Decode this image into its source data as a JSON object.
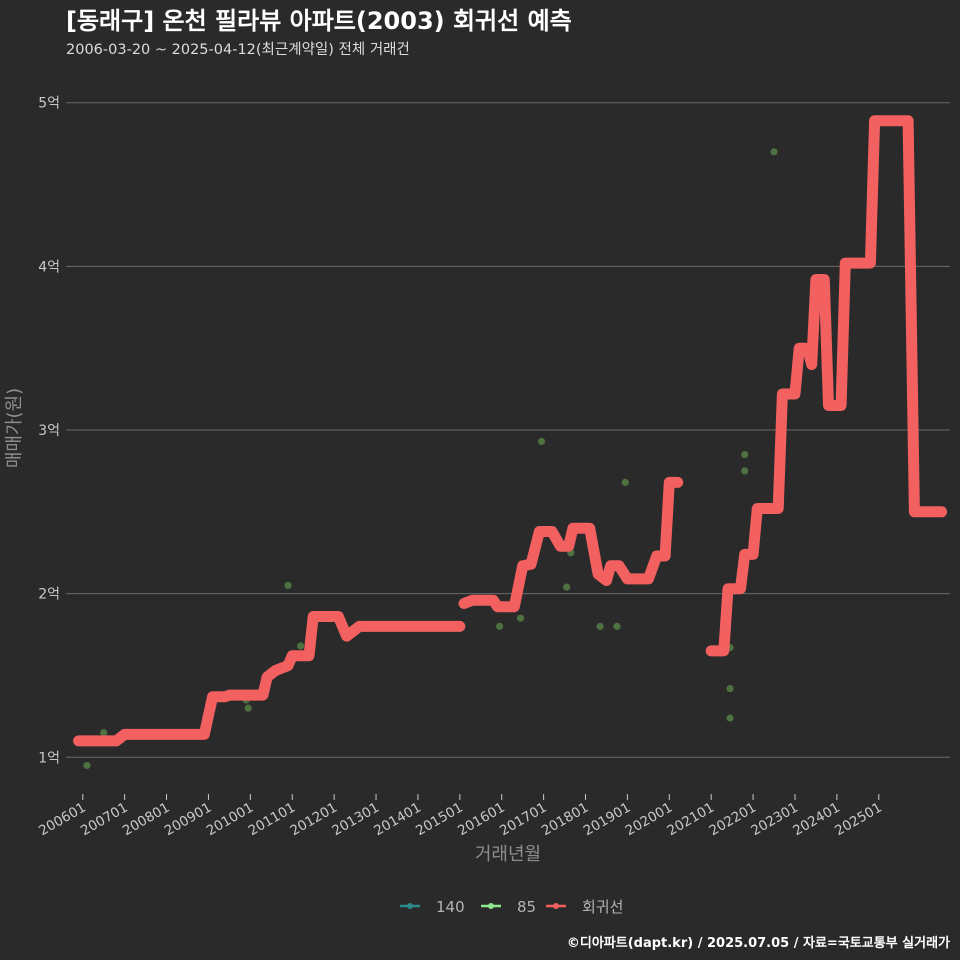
{
  "chart_data": {
    "type": "line",
    "title": "[동래구] 온천 필라뷰 아파트(2003) 회귀선 예측",
    "subtitle": "2006-03-20 ~ 2025-04-12(최근계약일) 전체 거래건",
    "xlabel": "거래년월",
    "ylabel": "매매가(원)",
    "ylim": [
      0.8,
      5.2
    ],
    "y_ticks": [
      {
        "v": 1,
        "label": "1억"
      },
      {
        "v": 2,
        "label": "2억"
      },
      {
        "v": 3,
        "label": "3억"
      },
      {
        "v": 4,
        "label": "4억"
      },
      {
        "v": 5,
        "label": "5억"
      }
    ],
    "xlim": [
      2005.6,
      2026.7
    ],
    "x_ticks": [
      {
        "v": 2006,
        "label": "200601"
      },
      {
        "v": 2007,
        "label": "200701"
      },
      {
        "v": 2008,
        "label": "200801"
      },
      {
        "v": 2009,
        "label": "200901"
      },
      {
        "v": 2010,
        "label": "201001"
      },
      {
        "v": 2011,
        "label": "201101"
      },
      {
        "v": 2012,
        "label": "201201"
      },
      {
        "v": 2013,
        "label": "201301"
      },
      {
        "v": 2014,
        "label": "201401"
      },
      {
        "v": 2015,
        "label": "201501"
      },
      {
        "v": 2016,
        "label": "201601"
      },
      {
        "v": 2017,
        "label": "201701"
      },
      {
        "v": 2018,
        "label": "201801"
      },
      {
        "v": 2019,
        "label": "201901"
      },
      {
        "v": 2020,
        "label": "202001"
      },
      {
        "v": 2021,
        "label": "202101"
      },
      {
        "v": 2022,
        "label": "202201"
      },
      {
        "v": 2023,
        "label": "202301"
      },
      {
        "v": 2024,
        "label": "202401"
      },
      {
        "v": 2025,
        "label": "202501"
      }
    ],
    "legend": [
      {
        "name": "140",
        "color": "#2a8a8a"
      },
      {
        "name": "85",
        "color": "#8ee68e"
      },
      {
        "name": "회귀선",
        "color": "#f26060"
      }
    ],
    "series": [
      {
        "name": "85",
        "color": "#5a8a4a",
        "points": [
          [
            2006.1,
            0.95
          ],
          [
            2006.5,
            1.15
          ],
          [
            2009.1,
            1.37
          ],
          [
            2009.9,
            1.35
          ],
          [
            2009.95,
            1.3
          ],
          [
            2010.25,
            1.4
          ],
          [
            2010.22,
            1.37
          ],
          [
            2010.9,
            2.05
          ],
          [
            2011.2,
            1.68
          ],
          [
            2015.95,
            1.8
          ],
          [
            2016.45,
            1.85
          ],
          [
            2016.95,
            2.93
          ],
          [
            2017.55,
            2.04
          ],
          [
            2017.65,
            2.25
          ],
          [
            2018.35,
            1.8
          ],
          [
            2018.75,
            1.8
          ],
          [
            2018.95,
            2.68
          ],
          [
            2021.45,
            1.42
          ],
          [
            2021.45,
            1.24
          ],
          [
            2021.45,
            1.67
          ],
          [
            2021.8,
            2.75
          ],
          [
            2021.8,
            2.85
          ],
          [
            2022.5,
            4.7
          ]
        ]
      },
      {
        "name": "회귀선",
        "color": "#f26060",
        "segments": [
          [
            [
              2005.9,
              1.1
            ],
            [
              2006.8,
              1.1
            ],
            [
              2007.0,
              1.14
            ],
            [
              2008.9,
              1.14
            ],
            [
              2009.1,
              1.37
            ],
            [
              2009.4,
              1.37
            ],
            [
              2009.5,
              1.38
            ],
            [
              2010.3,
              1.38
            ],
            [
              2010.4,
              1.49
            ],
            [
              2010.6,
              1.53
            ],
            [
              2010.9,
              1.56
            ],
            [
              2011.0,
              1.62
            ],
            [
              2011.4,
              1.62
            ],
            [
              2011.5,
              1.86
            ],
            [
              2012.1,
              1.86
            ],
            [
              2012.3,
              1.74
            ],
            [
              2012.6,
              1.8
            ],
            [
              2015.0,
              1.8
            ]
          ],
          [
            [
              2015.1,
              1.94
            ],
            [
              2015.3,
              1.96
            ],
            [
              2015.8,
              1.96
            ],
            [
              2015.9,
              1.92
            ],
            [
              2016.3,
              1.92
            ],
            [
              2016.5,
              2.17
            ],
            [
              2016.7,
              2.18
            ],
            [
              2016.9,
              2.38
            ],
            [
              2017.2,
              2.38
            ],
            [
              2017.4,
              2.29
            ],
            [
              2017.6,
              2.29
            ],
            [
              2017.7,
              2.4
            ],
            [
              2018.1,
              2.4
            ],
            [
              2018.3,
              2.12
            ],
            [
              2018.5,
              2.08
            ],
            [
              2018.6,
              2.17
            ],
            [
              2018.8,
              2.17
            ],
            [
              2019.0,
              2.09
            ],
            [
              2019.5,
              2.09
            ],
            [
              2019.7,
              2.23
            ],
            [
              2019.9,
              2.23
            ],
            [
              2020.0,
              2.68
            ],
            [
              2020.2,
              2.68
            ]
          ],
          [
            [
              2021.0,
              1.65
            ],
            [
              2021.3,
              1.65
            ],
            [
              2021.4,
              2.03
            ],
            [
              2021.7,
              2.03
            ],
            [
              2021.8,
              2.24
            ],
            [
              2022.0,
              2.24
            ],
            [
              2022.1,
              2.52
            ],
            [
              2022.6,
              2.52
            ],
            [
              2022.7,
              3.22
            ],
            [
              2023.0,
              3.22
            ],
            [
              2023.1,
              3.5
            ],
            [
              2023.3,
              3.5
            ],
            [
              2023.4,
              3.4
            ],
            [
              2023.5,
              3.92
            ],
            [
              2023.7,
              3.92
            ],
            [
              2023.8,
              3.15
            ],
            [
              2024.1,
              3.15
            ],
            [
              2024.2,
              4.02
            ],
            [
              2024.8,
              4.02
            ],
            [
              2024.9,
              4.89
            ],
            [
              2025.7,
              4.89
            ],
            [
              2025.85,
              2.5
            ],
            [
              2026.5,
              2.5
            ]
          ]
        ]
      }
    ]
  },
  "footer": {
    "credit": "©디아파트(dapt.kr) / 2025.07.05 / 자료=국토교통부 실거래가"
  }
}
